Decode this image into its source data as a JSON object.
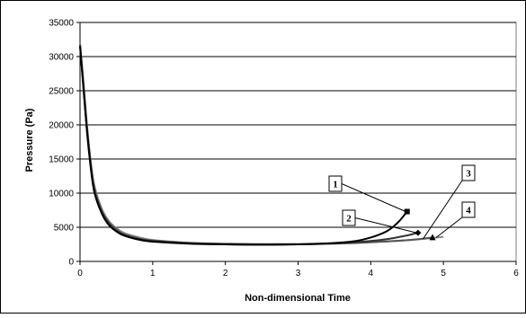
{
  "chart_data": {
    "type": "line",
    "title": "",
    "xlabel": "Non-dimensional Time",
    "ylabel": "Pressure (Pa)",
    "xlim": [
      0,
      6
    ],
    "ylim": [
      0,
      35000
    ],
    "x_ticks": [
      0,
      1,
      2,
      3,
      4,
      5,
      6
    ],
    "y_ticks": [
      0,
      5000,
      10000,
      15000,
      20000,
      25000,
      30000,
      35000
    ],
    "grid": "horizontal major gridlines",
    "legend": "none; curves identified by numbered callout boxes",
    "series": [
      {
        "label": "1",
        "color": "#000000",
        "end_marker": "square",
        "x": [
          0,
          0.05,
          0.1,
          0.15,
          0.2,
          0.3,
          0.4,
          0.5,
          0.6,
          0.8,
          1.0,
          1.5,
          2.0,
          2.5,
          3.0,
          3.5,
          3.8,
          4.0,
          4.2,
          4.3,
          4.4,
          4.5
        ],
        "y": [
          31500,
          25000,
          18500,
          13500,
          10000,
          7000,
          5300,
          4400,
          3800,
          3200,
          2900,
          2600,
          2500,
          2450,
          2500,
          2700,
          3000,
          3500,
          4300,
          5000,
          6000,
          7300
        ]
      },
      {
        "label": "2",
        "color": "#333333",
        "end_marker": "diamond",
        "x": [
          0,
          0.05,
          0.1,
          0.15,
          0.2,
          0.3,
          0.4,
          0.5,
          0.6,
          0.8,
          1.0,
          1.5,
          2.0,
          2.5,
          3.0,
          3.5,
          4.0,
          4.3,
          4.5,
          4.65
        ],
        "y": [
          31700,
          25300,
          18800,
          13800,
          10300,
          7200,
          5500,
          4500,
          3900,
          3300,
          3000,
          2650,
          2500,
          2450,
          2500,
          2650,
          3000,
          3400,
          3800,
          4200
        ]
      },
      {
        "label": "3",
        "color": "#555555",
        "end_marker": "triangle",
        "x": [
          0,
          0.05,
          0.1,
          0.15,
          0.2,
          0.3,
          0.4,
          0.5,
          0.6,
          0.8,
          1.0,
          1.5,
          2.0,
          2.5,
          3.0,
          3.5,
          4.0,
          4.5,
          4.85
        ],
        "y": [
          31800,
          25600,
          19100,
          14100,
          10600,
          7400,
          5700,
          4700,
          4000,
          3400,
          3050,
          2700,
          2550,
          2500,
          2500,
          2600,
          2800,
          3100,
          3500
        ]
      },
      {
        "label": "4",
        "color": "#888888",
        "end_marker": "none",
        "x": [
          0,
          0.05,
          0.1,
          0.15,
          0.2,
          0.3,
          0.4,
          0.5,
          0.6,
          0.8,
          1.0,
          1.5,
          2.0,
          2.5,
          3.0,
          3.5,
          4.0,
          4.5,
          5.0
        ],
        "y": [
          32000,
          26000,
          19500,
          14500,
          11000,
          7700,
          5900,
          4900,
          4200,
          3550,
          3150,
          2750,
          2600,
          2550,
          2550,
          2650,
          2850,
          3100,
          3600
        ]
      }
    ]
  }
}
